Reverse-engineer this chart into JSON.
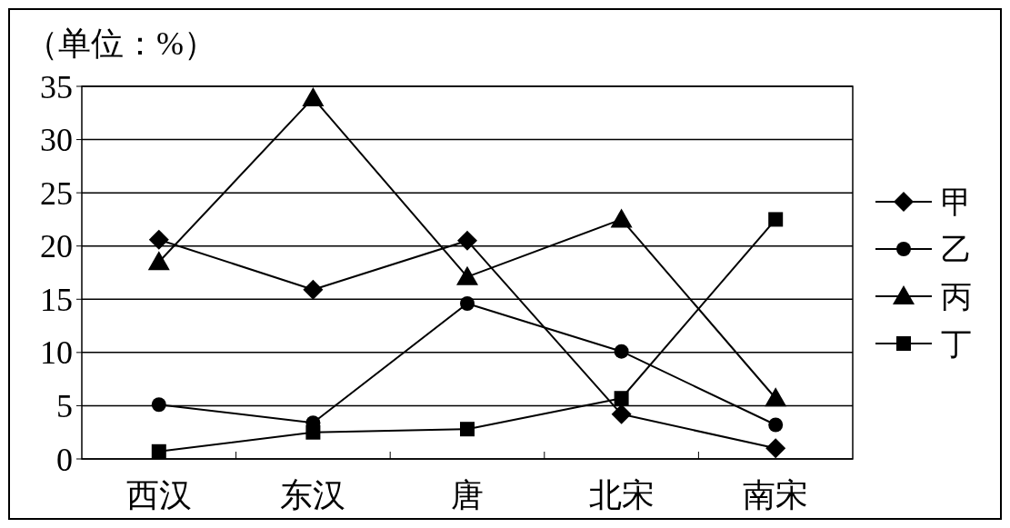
{
  "chart_data": {
    "type": "line",
    "ylabel": "（单位：%）",
    "categories": [
      "西汉",
      "东汉",
      "唐",
      "北宋",
      "南宋"
    ],
    "series": [
      {
        "name": "甲",
        "color": "#000000",
        "marker": "diamond",
        "values": [
          20.6,
          15.9,
          20.5,
          4.2,
          1.0
        ]
      },
      {
        "name": "乙",
        "color": "#000000",
        "marker": "circle",
        "values": [
          5.1,
          3.4,
          14.6,
          10.1,
          3.2
        ]
      },
      {
        "name": "丙",
        "color": "#000000",
        "marker": "triangle",
        "values": [
          18.5,
          33.9,
          17.1,
          22.5,
          5.7
        ]
      },
      {
        "name": "丁",
        "color": "#000000",
        "marker": "square",
        "values": [
          0.7,
          2.5,
          2.8,
          5.7,
          22.5
        ]
      }
    ],
    "ylim": [
      0,
      35
    ],
    "yticks": [
      0,
      5,
      10,
      15,
      20,
      25,
      30,
      35
    ],
    "grid": "y",
    "legend": "right",
    "line_style": "solid"
  }
}
